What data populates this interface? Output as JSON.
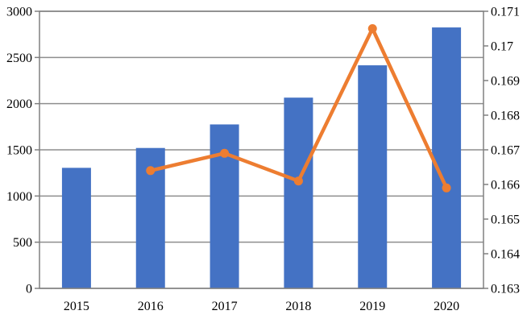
{
  "chart_data": {
    "type": "combo",
    "title": "",
    "subtitle": "",
    "legend": "none",
    "grid": true,
    "categories": [
      "2015",
      "2016",
      "2017",
      "2018",
      "2019",
      "2020"
    ],
    "series": [
      {
        "name": "bar-series",
        "type": "bar",
        "axis": "left",
        "color": "#4472C4",
        "values": [
          1305,
          1520,
          1775,
          2065,
          2415,
          2825
        ]
      },
      {
        "name": "line-series",
        "type": "line",
        "axis": "right",
        "color": "#ED7D31",
        "values": [
          null,
          0.1664,
          0.1669,
          0.1661,
          0.1705,
          0.1659
        ]
      }
    ],
    "left_axis": {
      "min": 0,
      "max": 3000,
      "step": 500,
      "tick_labels": [
        "3000",
        "2500",
        "2000",
        "1500",
        "1000",
        "500",
        "0"
      ]
    },
    "right_axis": {
      "min": 0.163,
      "max": 0.171,
      "step": 0.001,
      "tick_labels": [
        "0.171",
        "0.17",
        "0.169",
        "0.168",
        "0.167",
        "0.166",
        "0.165",
        "0.164",
        "0.163"
      ]
    },
    "colors": {
      "grid": "#8E8E8E",
      "border": "#808080",
      "text": "#000000",
      "background": "#FFFFFF"
    }
  }
}
